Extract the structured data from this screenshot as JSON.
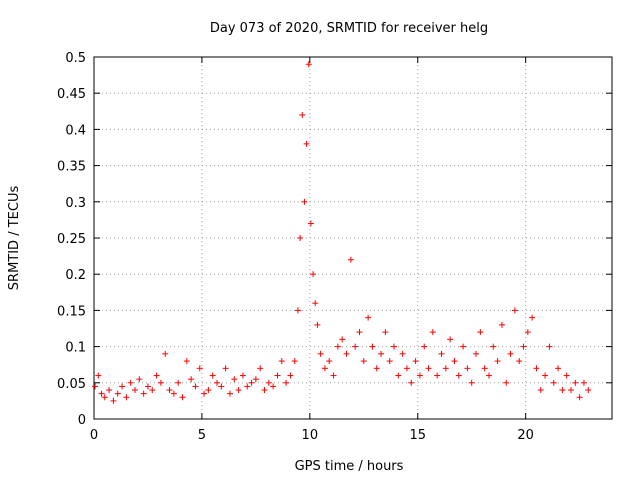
{
  "chart_data": {
    "type": "scatter",
    "title": "Day 073 of 2020, SRMTID for receiver helg",
    "xlabel": "GPS time / hours",
    "ylabel": "SRMTID / TECUs",
    "xlim": [
      0,
      24
    ],
    "ylim": [
      0,
      0.5
    ],
    "x_ticks": [
      0,
      5,
      10,
      15,
      20
    ],
    "x_tick_labels": [
      "0",
      "5",
      "10",
      "15",
      "20"
    ],
    "y_ticks": [
      0,
      0.05,
      0.1,
      0.15,
      0.2,
      0.25,
      0.3,
      0.35,
      0.4,
      0.45,
      0.5
    ],
    "y_tick_labels": [
      "0",
      "0.05",
      "0.1",
      "0.15",
      "0.2",
      "0.25",
      "0.3",
      "0.35",
      "0.4",
      "0.45",
      "0.5"
    ],
    "grid": true,
    "marker": "+",
    "series": [
      {
        "name": "SRMTID",
        "color": "#ff0000",
        "x": [
          0.05,
          0.2,
          0.35,
          0.5,
          0.7,
          0.9,
          1.1,
          1.3,
          1.5,
          1.7,
          1.9,
          2.1,
          2.3,
          2.5,
          2.7,
          2.9,
          3.1,
          3.3,
          3.5,
          3.7,
          3.9,
          4.1,
          4.3,
          4.5,
          4.7,
          4.9,
          5.1,
          5.3,
          5.5,
          5.7,
          5.9,
          6.1,
          6.3,
          6.5,
          6.7,
          6.9,
          7.1,
          7.3,
          7.5,
          7.7,
          7.9,
          8.1,
          8.3,
          8.5,
          8.7,
          8.9,
          9.1,
          9.3,
          9.45,
          9.55,
          9.65,
          9.75,
          9.85,
          9.95,
          10.05,
          10.15,
          10.25,
          10.35,
          10.5,
          10.7,
          10.9,
          11.1,
          11.3,
          11.5,
          11.7,
          11.9,
          12.1,
          12.3,
          12.5,
          12.7,
          12.9,
          13.1,
          13.3,
          13.5,
          13.7,
          13.9,
          14.1,
          14.3,
          14.5,
          14.7,
          14.9,
          15.1,
          15.3,
          15.5,
          15.7,
          15.9,
          16.1,
          16.3,
          16.5,
          16.7,
          16.9,
          17.1,
          17.3,
          17.5,
          17.7,
          17.9,
          18.1,
          18.3,
          18.5,
          18.7,
          18.9,
          19.1,
          19.3,
          19.5,
          19.7,
          19.9,
          20.1,
          20.3,
          20.5,
          20.7,
          20.9,
          21.1,
          21.3,
          21.5,
          21.7,
          21.9,
          22.1,
          22.3,
          22.5,
          22.7,
          22.9
        ],
        "y": [
          0.045,
          0.06,
          0.035,
          0.03,
          0.04,
          0.025,
          0.035,
          0.045,
          0.03,
          0.05,
          0.04,
          0.055,
          0.035,
          0.045,
          0.04,
          0.06,
          0.05,
          0.09,
          0.04,
          0.035,
          0.05,
          0.03,
          0.08,
          0.055,
          0.045,
          0.07,
          0.035,
          0.04,
          0.06,
          0.05,
          0.045,
          0.07,
          0.035,
          0.055,
          0.04,
          0.06,
          0.045,
          0.05,
          0.055,
          0.07,
          0.04,
          0.05,
          0.045,
          0.06,
          0.08,
          0.05,
          0.06,
          0.08,
          0.15,
          0.25,
          0.42,
          0.3,
          0.38,
          0.49,
          0.27,
          0.2,
          0.16,
          0.13,
          0.09,
          0.07,
          0.08,
          0.06,
          0.1,
          0.11,
          0.09,
          0.22,
          0.1,
          0.12,
          0.08,
          0.14,
          0.1,
          0.07,
          0.09,
          0.12,
          0.08,
          0.1,
          0.06,
          0.09,
          0.07,
          0.05,
          0.08,
          0.06,
          0.1,
          0.07,
          0.12,
          0.06,
          0.09,
          0.07,
          0.11,
          0.08,
          0.06,
          0.1,
          0.07,
          0.05,
          0.09,
          0.12,
          0.07,
          0.06,
          0.1,
          0.08,
          0.13,
          0.05,
          0.09,
          0.15,
          0.08,
          0.1,
          0.12,
          0.14,
          0.07,
          0.04,
          0.06,
          0.1,
          0.05,
          0.07,
          0.04,
          0.06,
          0.04,
          0.05,
          0.03,
          0.05,
          0.04
        ]
      }
    ]
  }
}
